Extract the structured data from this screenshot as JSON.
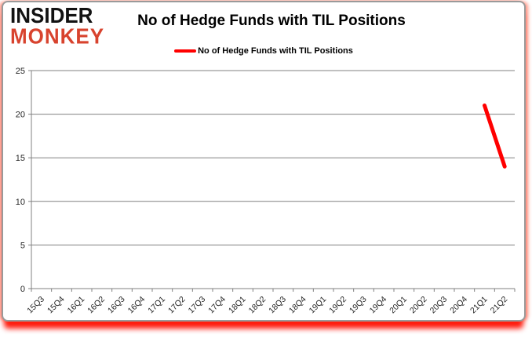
{
  "logo": {
    "line1": "INSIDER",
    "line2": "MONKEY"
  },
  "header": {
    "title": "No of Hedge Funds with TIL Positions"
  },
  "legend": {
    "label": "No of Hedge Funds with TIL Positions"
  },
  "colors": {
    "accent_red": "#ff0000",
    "logo_red": "#d8432e",
    "grid_gray": "#808080",
    "axis_gray": "#808080",
    "text_black": "#262626",
    "border_gray": "#9a9a9a"
  },
  "chart_data": {
    "type": "line",
    "title": "No of Hedge Funds with TIL Positions",
    "categories": [
      "15Q3",
      "15Q4",
      "16Q1",
      "16Q2",
      "16Q3",
      "16Q4",
      "17Q1",
      "17Q2",
      "17Q3",
      "17Q4",
      "18Q1",
      "18Q2",
      "18Q3",
      "18Q4",
      "19Q1",
      "19Q2",
      "19Q3",
      "19Q4",
      "20Q1",
      "20Q2",
      "20Q3",
      "20Q4",
      "21Q1",
      "21Q2"
    ],
    "series": [
      {
        "name": "No of Hedge Funds with TIL Positions",
        "color": "#ff0000",
        "values": [
          null,
          null,
          null,
          null,
          null,
          null,
          null,
          null,
          null,
          null,
          null,
          null,
          null,
          null,
          null,
          null,
          null,
          null,
          null,
          null,
          null,
          null,
          21,
          14
        ]
      }
    ],
    "ylim": [
      0,
      25
    ],
    "yticks": [
      0,
      5,
      10,
      15,
      20,
      25
    ],
    "grid": true,
    "legend_position": "top",
    "xlabel": "",
    "ylabel": ""
  }
}
